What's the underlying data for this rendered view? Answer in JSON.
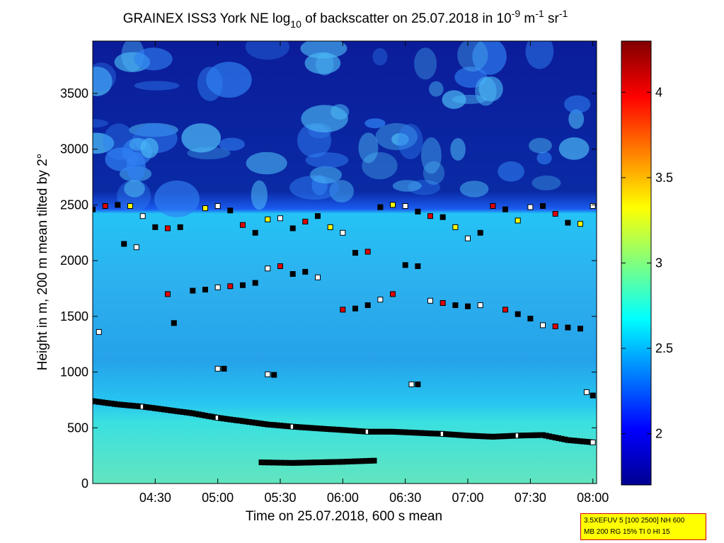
{
  "chart_data": {
    "type": "heatmap",
    "title": {
      "prefix": "GRAINEX ISS3 York NE log",
      "log_base": "10",
      "middle": " of backscatter on 25.07.2018 in 10",
      "exp1": "-9",
      "unit1": " m",
      "exp2": "-1",
      "unit2": " sr",
      "exp3": "-1"
    },
    "xlabel": "Time on 25.07.2018, 600 s mean",
    "ylabel": "Height in m, 200 m mean tilted by 2°",
    "x_ticks": [
      "04:30",
      "05:00",
      "05:30",
      "06:00",
      "06:30",
      "07:00",
      "07:30",
      "08:00"
    ],
    "x_tick_hours": [
      4.5,
      5.0,
      5.5,
      6.0,
      6.5,
      7.0,
      7.5,
      8.0
    ],
    "xlim_hours": [
      4.0,
      8.03
    ],
    "y_ticks": [
      "0",
      "500",
      "1000",
      "1500",
      "2000",
      "2500",
      "3000",
      "3500"
    ],
    "y_tick_values": [
      0,
      500,
      1000,
      1500,
      2000,
      2500,
      3000,
      3500
    ],
    "ylim": [
      0,
      3970
    ],
    "colorbar": {
      "ticks": [
        "2",
        "2.5",
        "3",
        "3.5",
        "4"
      ],
      "tick_values": [
        2.0,
        2.5,
        3.0,
        3.5,
        4.0
      ],
      "clim": [
        1.7,
        4.3
      ],
      "colormap": "jet"
    },
    "field": {
      "description_levels": [
        {
          "height_from": 0,
          "height_to": 300,
          "value": 2.75
        },
        {
          "height_from": 300,
          "height_to": 800,
          "value": 2.7
        },
        {
          "height_from": 800,
          "height_to": 1500,
          "value": 2.5
        },
        {
          "height_from": 1500,
          "height_to": 2450,
          "value": 2.55
        },
        {
          "height_from": 2450,
          "height_to": 3970,
          "value": 1.9
        }
      ]
    },
    "series": [
      {
        "marker": "boundary-layer-top",
        "x_hours": [
          4.0,
          4.2,
          4.4,
          4.6,
          4.8,
          5.0,
          5.2,
          5.4,
          5.6,
          5.8,
          6.0,
          6.2,
          6.4,
          6.6,
          6.8,
          7.0,
          7.2,
          7.4,
          7.6,
          7.8,
          8.0
        ],
        "y": [
          740,
          710,
          690,
          660,
          630,
          590,
          560,
          530,
          510,
          495,
          480,
          465,
          465,
          455,
          445,
          430,
          420,
          430,
          435,
          390,
          370
        ]
      },
      {
        "marker": "low-layer",
        "x_hours": [
          5.35,
          5.6,
          5.8,
          6.0,
          6.25
        ],
        "y": [
          190,
          185,
          190,
          195,
          205
        ]
      },
      {
        "marker": "cloud-top-layer",
        "x_hours": [
          4.0,
          4.1,
          4.2,
          4.3,
          4.4,
          4.5,
          4.6,
          4.7,
          4.9,
          5.0,
          5.1,
          5.2,
          5.3,
          5.4,
          5.5,
          5.6,
          5.7,
          5.8,
          5.9,
          6.0,
          6.1,
          6.2,
          6.3,
          6.4,
          6.5,
          6.6,
          6.7,
          6.8,
          6.9,
          7.0,
          7.1,
          7.2,
          7.3,
          7.4,
          7.5,
          7.6,
          7.7,
          7.8,
          7.9,
          8.0
        ],
        "y": [
          2460,
          2490,
          2500,
          2490,
          2400,
          2300,
          2290,
          2300,
          2470,
          2490,
          2450,
          2320,
          2250,
          2370,
          2380,
          2290,
          2350,
          2400,
          2300,
          2250,
          2070,
          2080,
          2480,
          2500,
          2490,
          2440,
          2400,
          2390,
          2300,
          2200,
          2250,
          2490,
          2460,
          2360,
          2480,
          2490,
          2420,
          2340,
          2330,
          2490
        ]
      },
      {
        "marker": "mid-layer",
        "x_hours": [
          4.25,
          4.35,
          4.6,
          4.8,
          4.9,
          5.0,
          5.1,
          5.2,
          5.3,
          5.4,
          5.5,
          5.6,
          5.7,
          5.8,
          6.0,
          6.1,
          6.2,
          6.3,
          6.4,
          6.5,
          6.6,
          6.7,
          6.8,
          6.9,
          7.0,
          7.1,
          7.3,
          7.4,
          7.5,
          7.6,
          7.7,
          7.8,
          7.9
        ],
        "y": [
          2150,
          2120,
          1700,
          1730,
          1740,
          1760,
          1770,
          1780,
          1800,
          1930,
          1950,
          1880,
          1900,
          1850,
          1560,
          1570,
          1600,
          1650,
          1700,
          1960,
          1950,
          1640,
          1620,
          1600,
          1590,
          1600,
          1560,
          1520,
          1480,
          1420,
          1410,
          1400,
          1390
        ]
      },
      {
        "marker": "scattered-low",
        "x_hours": [
          4.05,
          4.65,
          5.0,
          5.05,
          5.4,
          5.45,
          6.55,
          6.6,
          7.95,
          8.0
        ],
        "y": [
          1360,
          1440,
          1030,
          1030,
          980,
          975,
          890,
          890,
          820,
          790
        ]
      }
    ]
  },
  "settings_box": {
    "line1": "3.5XEFUV 5 [100 2500] NH 600",
    "line2": "MB 200 RG 15% TI 0 HI 15"
  },
  "colors": {
    "marker_fill_main": "#000000",
    "marker_fill_red": "#e00000",
    "marker_fill_yellow": "#ffff00",
    "marker_fill_white": "#ffffff",
    "settings_box_bg": "#ffff00",
    "settings_box_border": "#d00000"
  }
}
